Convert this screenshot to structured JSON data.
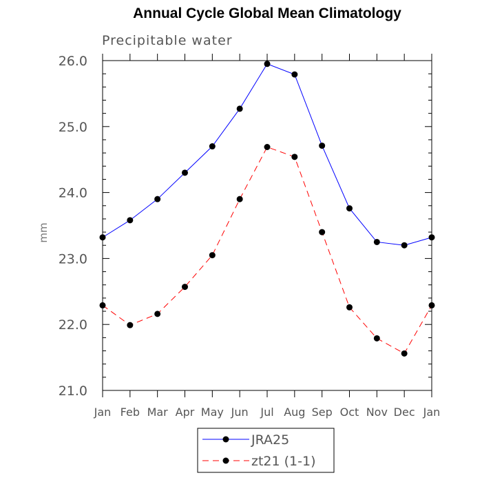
{
  "chart_data": {
    "type": "line",
    "title": "Annual Cycle Global Mean Climatology",
    "subtitle": "Precipitable water",
    "ylabel": "mm",
    "xlabel": "",
    "categories": [
      "Jan",
      "Feb",
      "Mar",
      "Apr",
      "May",
      "Jun",
      "Jul",
      "Aug",
      "Sep",
      "Oct",
      "Nov",
      "Dec",
      "Jan"
    ],
    "ylim": [
      21.0,
      26.0
    ],
    "yticks": [
      "21.0",
      "22.0",
      "23.0",
      "24.0",
      "25.0",
      "26.0"
    ],
    "series": [
      {
        "name": "JRA25",
        "color": "#0000ff",
        "dash": "solid",
        "marker": "filled-circle",
        "values": [
          23.32,
          23.58,
          23.9,
          24.3,
          24.7,
          25.27,
          25.95,
          25.79,
          24.71,
          23.76,
          23.25,
          23.2,
          23.32
        ]
      },
      {
        "name": "zt21 (1-1)",
        "color": "#ff0000",
        "dash": "dashed",
        "marker": "filled-circle",
        "values": [
          22.29,
          21.99,
          22.16,
          22.57,
          23.05,
          23.9,
          24.69,
          24.54,
          23.4,
          22.26,
          21.79,
          21.56,
          22.29
        ]
      }
    ],
    "legend_position": "bottom-center",
    "grid": false
  }
}
